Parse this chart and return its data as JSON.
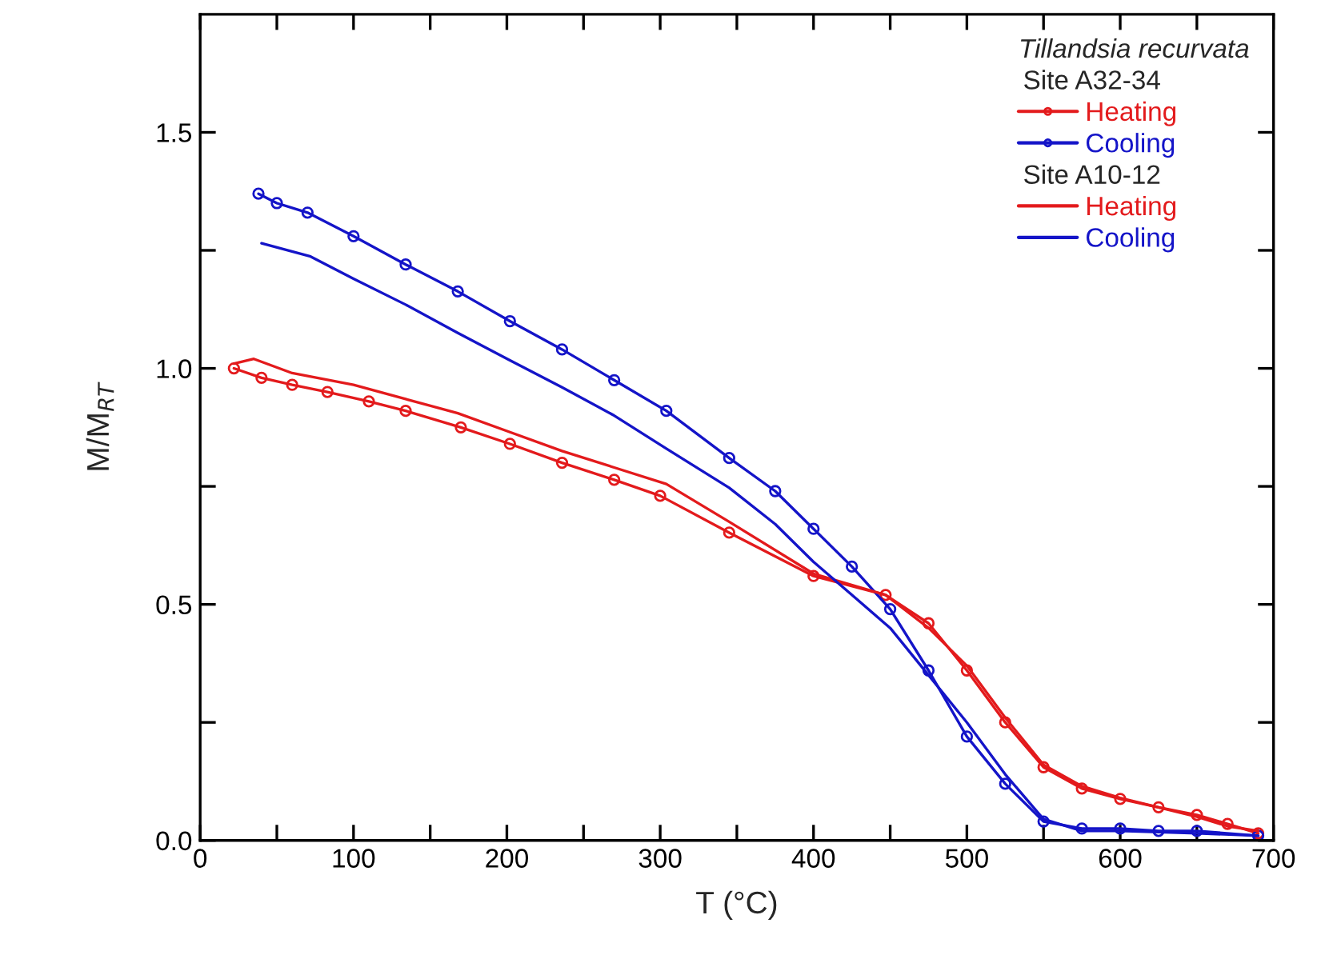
{
  "chart_data": {
    "type": "line",
    "xlabel": "T (°C)",
    "ylabel": "M/M$_{RT}$",
    "legend_title": "Tillandsia recurvata",
    "annotations": [
      "Site A32-34",
      "Site A10-12"
    ],
    "xlim": [
      0,
      700
    ],
    "xticks": [
      0,
      {
        "value": 50,
        "label": null
      },
      100,
      {
        "value": 150,
        "label": null
      },
      200,
      {
        "value": 250,
        "label": null
      },
      300,
      {
        "value": 350,
        "label": null
      },
      400,
      {
        "value": 450,
        "label": null
      },
      500,
      {
        "value": 550,
        "label": null
      },
      600,
      {
        "value": 650,
        "label": null
      },
      700
    ],
    "ylim": [
      0,
      1.75
    ],
    "yticks": [
      {
        "value": 0,
        "label": "0.0"
      },
      {
        "value": 0.25,
        "label": null
      },
      0.5,
      {
        "value": 0.75,
        "label": null
      },
      {
        "value": 1.0,
        "label": "1.0"
      },
      {
        "value": 1.25,
        "label": null
      },
      1.5
    ],
    "grid": false,
    "legend": "top right",
    "line_style": "solid",
    "series": [
      {
        "name": "Heating",
        "color": "#e31a1c",
        "marker": "circle",
        "x": [
          22,
          40,
          60,
          83,
          110,
          134,
          170,
          202,
          236,
          270,
          300,
          345,
          400,
          447,
          475,
          500,
          525,
          550,
          575,
          600,
          625,
          650,
          670,
          690
        ],
        "values": [
          1.0,
          0.98,
          0.965,
          0.95,
          0.93,
          0.91,
          0.875,
          0.84,
          0.8,
          0.764,
          0.73,
          0.652,
          0.56,
          0.52,
          0.46,
          0.36,
          0.25,
          0.155,
          0.11,
          0.088,
          0.07,
          0.054,
          0.035,
          0.015
        ]
      },
      {
        "name": "Cooling",
        "color": "#1414c8",
        "marker": "circle",
        "x": [
          38,
          50,
          70,
          100,
          134,
          168,
          202,
          236,
          270,
          304,
          345,
          375,
          400,
          425,
          450,
          475,
          500,
          525,
          550,
          575,
          600,
          625,
          650,
          690
        ],
        "values": [
          1.37,
          1.35,
          1.33,
          1.28,
          1.22,
          1.163,
          1.1,
          1.04,
          0.975,
          0.91,
          0.81,
          0.74,
          0.66,
          0.58,
          0.49,
          0.36,
          0.22,
          0.12,
          0.04,
          0.025,
          0.025,
          0.02,
          0.02,
          0.01
        ]
      },
      {
        "name": "Heating",
        "color": "#e31a1c",
        "marker": "none",
        "x": [
          22,
          35,
          60,
          100,
          134,
          168,
          202,
          236,
          270,
          304,
          345,
          400,
          447,
          475,
          500,
          525,
          550,
          575,
          600,
          625,
          650,
          670,
          690
        ],
        "values": [
          1.01,
          1.02,
          0.99,
          0.965,
          0.935,
          0.905,
          0.865,
          0.825,
          0.79,
          0.755,
          0.675,
          0.565,
          0.52,
          0.45,
          0.37,
          0.26,
          0.16,
          0.115,
          0.09,
          0.07,
          0.05,
          0.03,
          0.02
        ]
      },
      {
        "name": "Cooling",
        "color": "#1414c8",
        "marker": "none",
        "x": [
          40,
          72,
          100,
          134,
          168,
          202,
          236,
          270,
          304,
          345,
          375,
          400,
          425,
          450,
          475,
          500,
          525,
          550,
          575,
          600,
          650,
          690
        ],
        "values": [
          1.265,
          1.237,
          1.19,
          1.135,
          1.075,
          1.017,
          0.96,
          0.9,
          0.83,
          0.747,
          0.67,
          0.59,
          0.52,
          0.45,
          0.35,
          0.25,
          0.14,
          0.045,
          0.02,
          0.02,
          0.015,
          0.01
        ]
      }
    ]
  }
}
